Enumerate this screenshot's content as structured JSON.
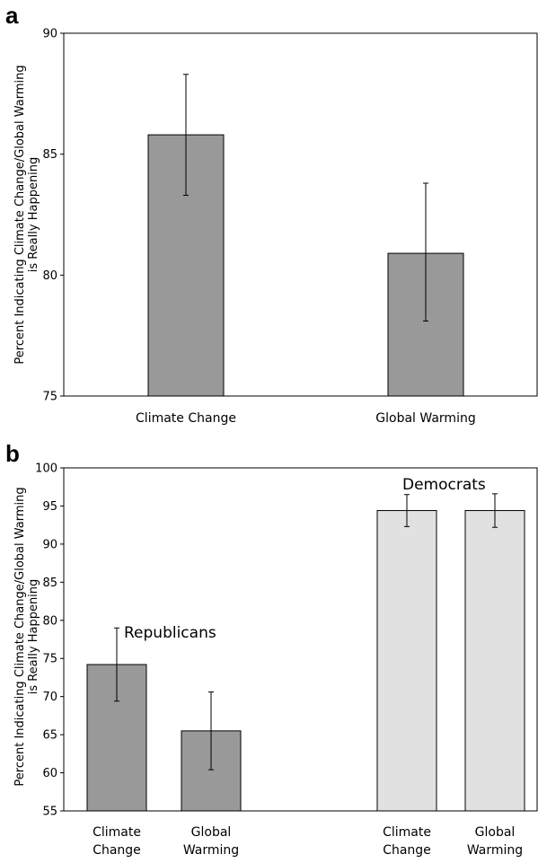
{
  "chart_data": [
    {
      "type": "bar",
      "panel_label": "a",
      "ylabel_lines": [
        "Percent Indicating Climate Change/Global Warming",
        "is Really Happening"
      ],
      "xlabel": "",
      "ylim": [
        75,
        90
      ],
      "yticks": [
        "75",
        "80",
        "85",
        "90"
      ],
      "categories": [
        [
          "Climate Change"
        ],
        [
          "Global Warming"
        ]
      ],
      "values": [
        85.8,
        80.9
      ],
      "error_low": [
        83.3,
        78.1
      ],
      "error_high": [
        88.3,
        83.8
      ],
      "bar_colors": [
        "#999999",
        "#999999"
      ],
      "annotations": []
    },
    {
      "type": "bar",
      "panel_label": "b",
      "ylabel_lines": [
        "Percent Indicating Climate Change/Global Warming",
        "is Really Happening"
      ],
      "xlabel": "",
      "ylim": [
        55,
        100
      ],
      "yticks": [
        "55",
        "60",
        "65",
        "70",
        "75",
        "80",
        "85",
        "90",
        "95",
        "100"
      ],
      "categories": [
        [
          "Climate",
          "Change"
        ],
        [
          "Global",
          "Warming"
        ],
        [
          "Climate",
          "Change"
        ],
        [
          "Global",
          "Warming"
        ]
      ],
      "values": [
        74.2,
        65.5,
        94.4,
        94.4
      ],
      "error_low": [
        69.4,
        60.4,
        92.3,
        92.2
      ],
      "error_high": [
        79.0,
        70.6,
        96.5,
        96.6
      ],
      "bar_colors": [
        "#999999",
        "#999999",
        "#e1e1e1",
        "#e1e1e1"
      ],
      "annotations": [
        {
          "text": "Republicans"
        },
        {
          "text": "Democrats"
        }
      ]
    }
  ]
}
